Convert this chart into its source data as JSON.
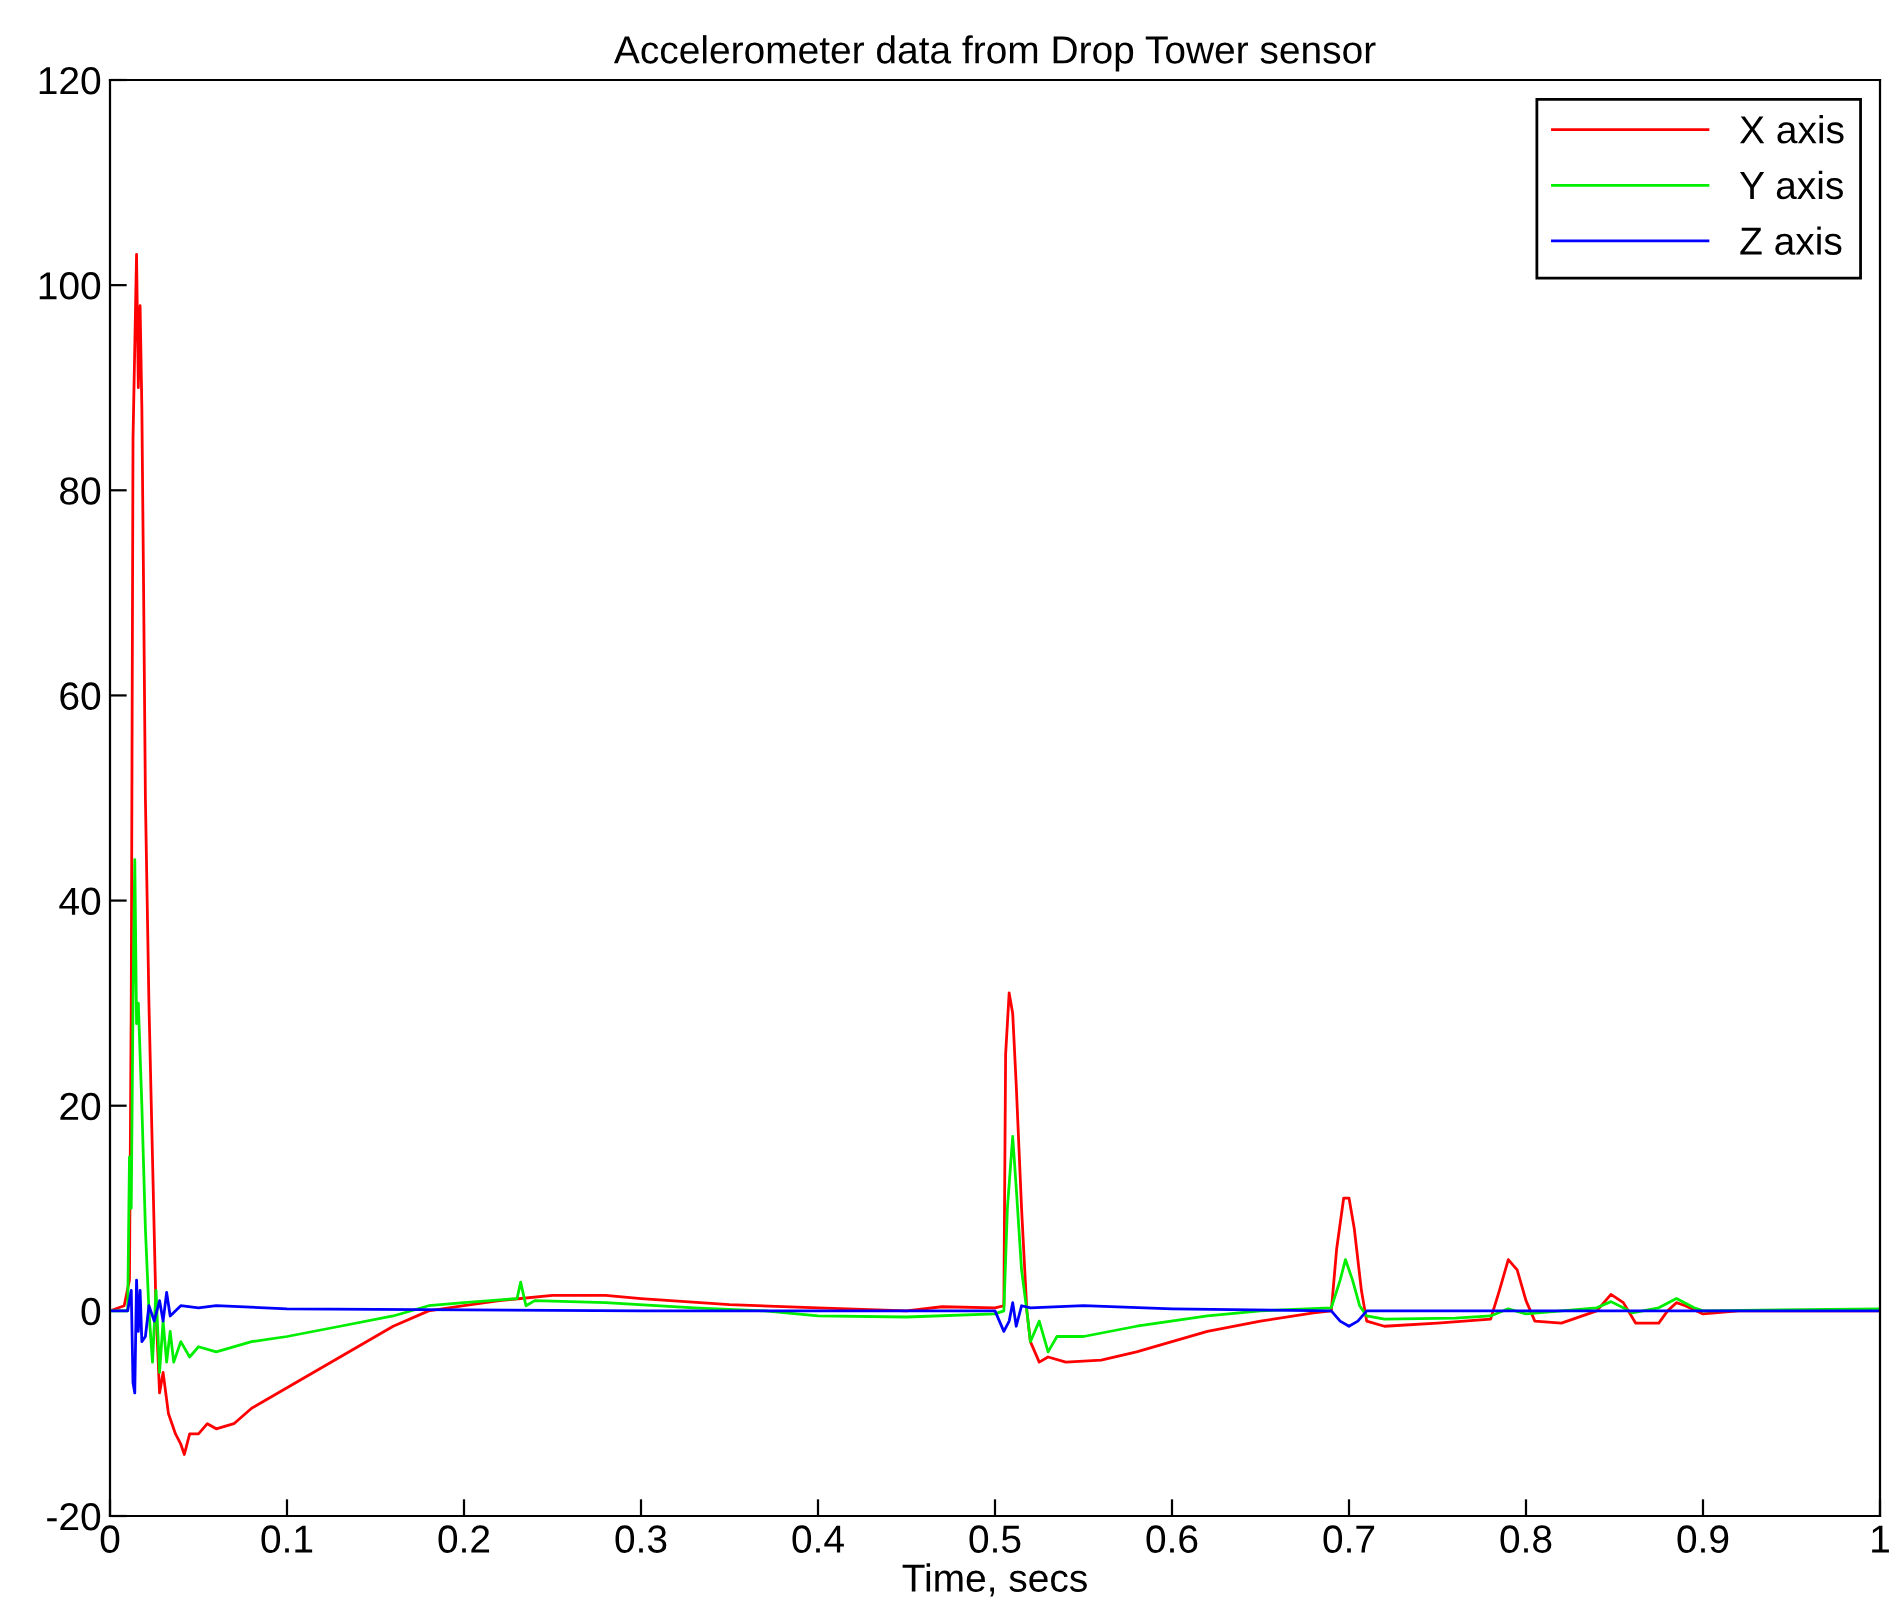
{
  "chart_data": {
    "type": "line",
    "title": "Accelerometer data from Drop Tower sensor",
    "xlabel": "Time, secs",
    "xlim": [
      0,
      1
    ],
    "xticks": [
      0,
      0.1,
      0.2,
      0.3,
      0.4,
      0.5,
      0.6,
      0.7,
      0.8,
      0.9,
      1
    ],
    "ylim": [
      -20,
      120
    ],
    "yticks": [
      -20,
      0,
      20,
      40,
      60,
      80,
      100,
      120
    ],
    "grid": false,
    "legend": "top right",
    "marker": "none",
    "line_style": "solid",
    "series": [
      {
        "name": "X axis",
        "color": "#ff0000",
        "x": [
          0,
          0.008,
          0.011,
          0.012,
          0.013,
          0.015,
          0.016,
          0.017,
          0.018,
          0.019,
          0.02,
          0.022,
          0.024,
          0.026,
          0.028,
          0.03,
          0.033,
          0.037,
          0.04,
          0.042,
          0.045,
          0.05,
          0.055,
          0.06,
          0.07,
          0.08,
          0.1,
          0.12,
          0.14,
          0.16,
          0.18,
          0.2,
          0.22,
          0.25,
          0.28,
          0.3,
          0.35,
          0.4,
          0.45,
          0.47,
          0.5,
          0.505,
          0.506,
          0.508,
          0.51,
          0.512,
          0.515,
          0.518,
          0.52,
          0.525,
          0.53,
          0.54,
          0.56,
          0.58,
          0.6,
          0.62,
          0.65,
          0.68,
          0.69,
          0.693,
          0.697,
          0.7,
          0.703,
          0.707,
          0.71,
          0.72,
          0.75,
          0.78,
          0.785,
          0.79,
          0.795,
          0.8,
          0.805,
          0.82,
          0.84,
          0.848,
          0.855,
          0.862,
          0.875,
          0.88,
          0.885,
          0.89,
          0.9,
          0.92,
          1
        ],
        "values": [
          0,
          0.5,
          3,
          30,
          85,
          103,
          90,
          98,
          88,
          70,
          50,
          30,
          15,
          0,
          -8,
          -6,
          -10,
          -12,
          -13,
          -14,
          -12,
          -12,
          -11,
          -11.5,
          -11,
          -9.5,
          -7.5,
          -5.5,
          -3.5,
          -1.5,
          0,
          0.5,
          1,
          1.5,
          1.5,
          1.2,
          0.6,
          0.3,
          0,
          0.4,
          0.3,
          0.5,
          25,
          31,
          29,
          22,
          10,
          0,
          -3,
          -5,
          -4.5,
          -5,
          -4.8,
          -4,
          -3,
          -2,
          -1,
          -0.2,
          0,
          6,
          11,
          11,
          8,
          2,
          -1,
          -1.5,
          -1.2,
          -0.8,
          2,
          5,
          4,
          1,
          -1,
          -1.2,
          0,
          1.6,
          0.8,
          -1.2,
          -1.2,
          0,
          0.8,
          0.5,
          -0.3,
          0,
          0
        ]
      },
      {
        "name": "Y axis",
        "color": "#00ee00",
        "x": [
          0,
          0.01,
          0.011,
          0.012,
          0.013,
          0.014,
          0.015,
          0.016,
          0.018,
          0.02,
          0.022,
          0.024,
          0.026,
          0.028,
          0.03,
          0.032,
          0.034,
          0.036,
          0.04,
          0.045,
          0.05,
          0.06,
          0.08,
          0.1,
          0.13,
          0.16,
          0.18,
          0.2,
          0.23,
          0.232,
          0.235,
          0.24,
          0.28,
          0.33,
          0.37,
          0.4,
          0.45,
          0.5,
          0.505,
          0.507,
          0.51,
          0.512,
          0.515,
          0.518,
          0.52,
          0.525,
          0.53,
          0.535,
          0.55,
          0.58,
          0.62,
          0.65,
          0.69,
          0.695,
          0.698,
          0.702,
          0.706,
          0.71,
          0.72,
          0.76,
          0.78,
          0.79,
          0.8,
          0.84,
          0.848,
          0.855,
          0.86,
          0.875,
          0.885,
          0.895,
          0.9,
          1
        ],
        "values": [
          0,
          0,
          15,
          10,
          30,
          44,
          28,
          30,
          20,
          8,
          0,
          -5,
          2,
          -6,
          -1,
          -5,
          -2,
          -5,
          -3,
          -4.5,
          -3.5,
          -4,
          -3,
          -2.5,
          -1.5,
          -0.5,
          0.5,
          0.8,
          1.2,
          2.8,
          0.5,
          1,
          0.8,
          0.3,
          0,
          -0.5,
          -0.6,
          -0.3,
          0,
          10,
          17,
          12,
          4,
          0,
          -3,
          -1,
          -4,
          -2.5,
          -2.5,
          -1.5,
          -0.5,
          0,
          0.3,
          3,
          5,
          3,
          0.5,
          -0.5,
          -0.8,
          -0.7,
          -0.5,
          0.2,
          -0.3,
          0.3,
          0.9,
          0.3,
          -0.2,
          0.3,
          1.2,
          0.3,
          0,
          0.2
        ]
      },
      {
        "name": "Z axis",
        "color": "#0000ff",
        "x": [
          0,
          0.01,
          0.012,
          0.013,
          0.014,
          0.015,
          0.016,
          0.017,
          0.018,
          0.02,
          0.022,
          0.025,
          0.028,
          0.03,
          0.032,
          0.034,
          0.04,
          0.05,
          0.06,
          0.1,
          0.2,
          0.3,
          0.5,
          0.505,
          0.508,
          0.51,
          0.512,
          0.515,
          0.52,
          0.55,
          0.6,
          0.69,
          0.695,
          0.7,
          0.705,
          0.71,
          0.8,
          1
        ],
        "values": [
          0,
          0,
          2,
          -7,
          -8,
          3,
          -2,
          2,
          -3,
          -2.5,
          0.5,
          -1,
          1,
          -1,
          1.8,
          -0.5,
          0.5,
          0.3,
          0.5,
          0.2,
          0.1,
          0,
          0,
          -2,
          -1,
          0.8,
          -1.5,
          0.5,
          0.3,
          0.5,
          0.2,
          0,
          -1,
          -1.5,
          -1,
          0,
          0,
          0
        ]
      }
    ]
  }
}
